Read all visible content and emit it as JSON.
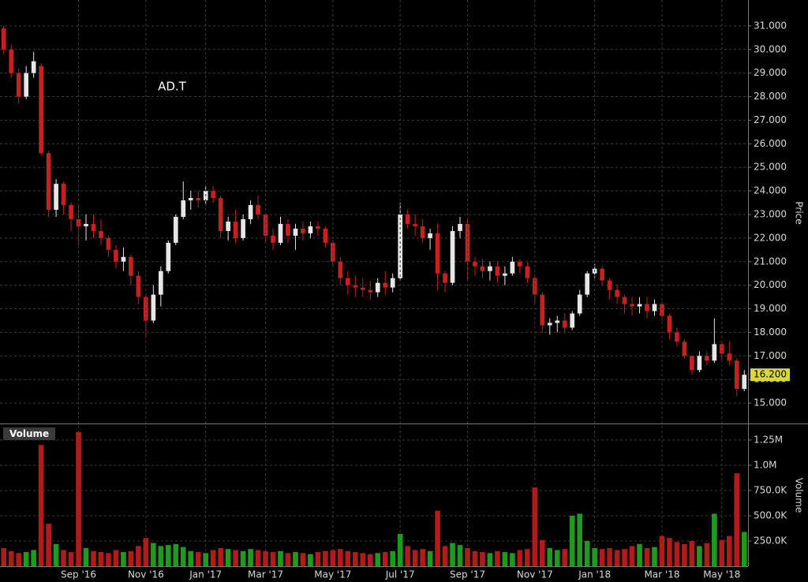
{
  "chart_data": [
    {
      "type": "candlestick",
      "title": "AD.T",
      "y_label": "Price",
      "up_color": "#e6e6e6",
      "down_color": "#c62020",
      "ylim": [
        14.2,
        32.1
      ],
      "yticks": [
        {
          "value": 15,
          "label": "15.000"
        },
        {
          "value": 16,
          "label": "16.000"
        },
        {
          "value": 17,
          "label": "17.000"
        },
        {
          "value": 18,
          "label": "18.000"
        },
        {
          "value": 19,
          "label": "19.000"
        },
        {
          "value": 20,
          "label": "20.000"
        },
        {
          "value": 21,
          "label": "21.000"
        },
        {
          "value": 22,
          "label": "22.000"
        },
        {
          "value": 23,
          "label": "23.000"
        },
        {
          "value": 24,
          "label": "24.000"
        },
        {
          "value": 25,
          "label": "25.000"
        },
        {
          "value": 26,
          "label": "26.000"
        },
        {
          "value": 27,
          "label": "27.000"
        },
        {
          "value": 28,
          "label": "28.000"
        },
        {
          "value": 29,
          "label": "29.000"
        },
        {
          "value": 30,
          "label": "30.000"
        },
        {
          "value": 31,
          "label": "31.000"
        }
      ],
      "last_label": "16.200",
      "open": [
        30.9,
        30.0,
        29.0,
        28.0,
        29.0,
        29.3,
        25.6,
        23.2,
        24.3,
        23.4,
        22.8,
        22.5,
        22.6,
        22.3,
        22.0,
        21.5,
        21.0,
        21.2,
        20.4,
        19.5,
        18.5,
        19.6,
        20.6,
        21.8,
        22.9,
        23.6,
        23.7,
        23.6,
        24.0,
        23.7,
        22.3,
        22.7,
        22.0,
        22.8,
        23.4,
        23.0,
        22.1,
        21.8,
        22.6,
        22.1,
        22.4,
        22.2,
        22.5,
        22.4,
        21.8,
        21.0,
        20.3,
        20.0,
        19.9,
        19.8,
        19.7,
        20.1,
        19.9,
        20.3,
        23.0,
        22.6,
        22.5,
        22.0,
        22.2,
        20.5,
        20.1,
        22.3,
        22.6,
        21.0,
        20.8,
        20.6,
        20.8,
        20.4,
        20.5,
        21.0,
        20.8,
        20.3,
        19.6,
        18.3,
        18.4,
        18.5,
        18.2,
        18.8,
        19.6,
        20.5,
        20.7,
        20.2,
        19.8,
        19.5,
        19.2,
        19.1,
        19.2,
        18.9,
        19.2,
        18.7,
        18.0,
        17.6,
        17.0,
        16.4,
        17.0,
        16.8,
        17.5,
        17.1,
        16.8,
        15.6
      ],
      "high": [
        31.0,
        30.2,
        29.2,
        29.3,
        29.9,
        29.4,
        25.7,
        24.5,
        24.4,
        23.5,
        23.4,
        23.0,
        23.0,
        22.8,
        22.1,
        21.7,
        21.6,
        21.3,
        20.6,
        19.6,
        20.0,
        20.8,
        21.9,
        23.0,
        24.4,
        24.0,
        24.0,
        24.2,
        24.2,
        23.8,
        22.9,
        23.2,
        23.0,
        23.6,
        23.8,
        23.0,
        22.4,
        22.9,
        22.8,
        22.6,
        22.7,
        22.7,
        22.7,
        22.5,
        21.9,
        21.2,
        20.6,
        20.4,
        20.3,
        20.2,
        20.3,
        20.6,
        20.5,
        23.5,
        23.2,
        23.0,
        22.8,
        22.4,
        22.6,
        20.6,
        22.5,
        22.9,
        22.8,
        21.2,
        21.1,
        21.0,
        21.0,
        20.8,
        21.2,
        21.1,
        21.0,
        20.4,
        19.7,
        18.6,
        18.7,
        18.8,
        18.9,
        19.8,
        20.6,
        20.9,
        20.8,
        20.3,
        20.0,
        19.6,
        19.5,
        19.5,
        19.5,
        19.4,
        19.3,
        18.8,
        18.2,
        17.7,
        17.0,
        17.2,
        17.2,
        18.6,
        17.6,
        17.6,
        16.9,
        16.4
      ],
      "low": [
        29.8,
        28.8,
        27.7,
        27.9,
        28.8,
        25.5,
        22.9,
        22.9,
        23.0,
        22.3,
        21.7,
        21.9,
        22.0,
        21.7,
        21.2,
        20.7,
        20.6,
        20.0,
        19.2,
        17.8,
        18.4,
        19.1,
        20.5,
        21.7,
        22.8,
        23.2,
        23.3,
        23.4,
        23.5,
        22.0,
        21.9,
        21.8,
        21.9,
        22.6,
        22.8,
        21.8,
        21.5,
        21.7,
        21.8,
        21.5,
        21.9,
        22.0,
        22.1,
        21.6,
        20.8,
        20.0,
        19.6,
        19.5,
        19.5,
        19.4,
        19.5,
        19.6,
        19.7,
        20.2,
        22.4,
        22.1,
        21.8,
        21.5,
        19.8,
        19.7,
        20.0,
        22.0,
        20.2,
        20.4,
        20.3,
        20.2,
        20.1,
        20.0,
        20.4,
        20.5,
        20.1,
        19.2,
        18.0,
        17.9,
        18.0,
        18.0,
        18.1,
        18.7,
        19.5,
        20.3,
        20.0,
        19.4,
        19.2,
        18.8,
        18.7,
        18.8,
        18.6,
        18.7,
        18.5,
        17.7,
        17.4,
        16.9,
        16.2,
        16.3,
        16.6,
        16.7,
        16.8,
        16.6,
        15.3,
        15.5
      ],
      "close": [
        30.0,
        29.0,
        28.0,
        29.0,
        29.5,
        25.6,
        23.2,
        24.3,
        23.4,
        22.8,
        22.5,
        22.6,
        22.3,
        22.0,
        21.5,
        21.0,
        21.2,
        20.4,
        19.5,
        18.5,
        19.6,
        20.6,
        21.8,
        22.9,
        23.6,
        23.7,
        23.6,
        24.0,
        23.7,
        22.3,
        22.7,
        22.0,
        22.8,
        23.4,
        23.0,
        22.1,
        21.8,
        22.6,
        22.1,
        22.4,
        22.2,
        22.5,
        22.4,
        21.8,
        21.0,
        20.3,
        20.0,
        19.9,
        19.8,
        19.7,
        20.1,
        19.9,
        20.3,
        23.0,
        22.6,
        22.5,
        22.0,
        22.2,
        20.5,
        20.1,
        22.3,
        22.6,
        21.0,
        20.8,
        20.6,
        20.8,
        20.4,
        20.5,
        21.0,
        20.8,
        20.3,
        19.6,
        18.3,
        18.4,
        18.5,
        18.2,
        18.8,
        19.6,
        20.5,
        20.7,
        20.2,
        19.8,
        19.5,
        19.2,
        19.1,
        19.2,
        18.9,
        19.2,
        18.7,
        18.0,
        17.6,
        17.0,
        16.4,
        17.0,
        16.8,
        17.5,
        17.1,
        16.8,
        15.6,
        16.2
      ]
    },
    {
      "type": "bar",
      "title": "Volume",
      "y_label": "Volume",
      "up_color": "#1f9a1f",
      "down_color": "#b01c1c",
      "ylim": [
        0,
        1390000
      ],
      "yticks": [
        {
          "value": 250000,
          "label": "250.0K"
        },
        {
          "value": 500000,
          "label": "500.0K"
        },
        {
          "value": 750000,
          "label": "750.0K"
        },
        {
          "value": 1000000,
          "label": "1.0M"
        },
        {
          "value": 1250000,
          "label": "1.25M"
        }
      ],
      "categories": [
        null,
        null,
        null,
        null,
        null,
        null,
        null,
        null,
        null,
        null,
        "Sep '16",
        null,
        null,
        null,
        null,
        null,
        null,
        null,
        null,
        "Nov '16",
        null,
        null,
        null,
        null,
        null,
        null,
        null,
        "Jan '17",
        null,
        null,
        null,
        null,
        null,
        null,
        null,
        "Mar '17",
        null,
        null,
        null,
        null,
        null,
        null,
        null,
        null,
        "May '17",
        null,
        null,
        null,
        null,
        null,
        null,
        null,
        null,
        "Jul '17",
        null,
        null,
        null,
        null,
        null,
        null,
        null,
        null,
        "Sep '17",
        null,
        null,
        null,
        null,
        null,
        null,
        null,
        null,
        "Nov '17",
        null,
        null,
        null,
        null,
        null,
        null,
        null,
        "Jan '18",
        null,
        null,
        null,
        null,
        null,
        null,
        null,
        null,
        "Mar '18",
        null,
        null,
        null,
        null,
        null,
        null,
        null,
        "May '18",
        null,
        null,
        null
      ],
      "values": [
        180000,
        150000,
        130000,
        140000,
        160000,
        1200000,
        420000,
        220000,
        160000,
        140000,
        1330000,
        180000,
        150000,
        140000,
        130000,
        160000,
        140000,
        150000,
        200000,
        280000,
        230000,
        200000,
        210000,
        220000,
        190000,
        150000,
        140000,
        130000,
        160000,
        180000,
        170000,
        160000,
        150000,
        170000,
        160000,
        150000,
        140000,
        150000,
        130000,
        140000,
        130000,
        120000,
        140000,
        150000,
        160000,
        170000,
        150000,
        140000,
        130000,
        120000,
        130000,
        140000,
        150000,
        320000,
        200000,
        160000,
        170000,
        150000,
        550000,
        200000,
        230000,
        210000,
        180000,
        150000,
        140000,
        130000,
        150000,
        140000,
        130000,
        160000,
        170000,
        780000,
        260000,
        180000,
        160000,
        170000,
        500000,
        520000,
        250000,
        180000,
        170000,
        180000,
        160000,
        170000,
        200000,
        220000,
        180000,
        190000,
        300000,
        280000,
        240000,
        220000,
        250000,
        200000,
        230000,
        520000,
        260000,
        300000,
        920000,
        340000
      ]
    }
  ]
}
